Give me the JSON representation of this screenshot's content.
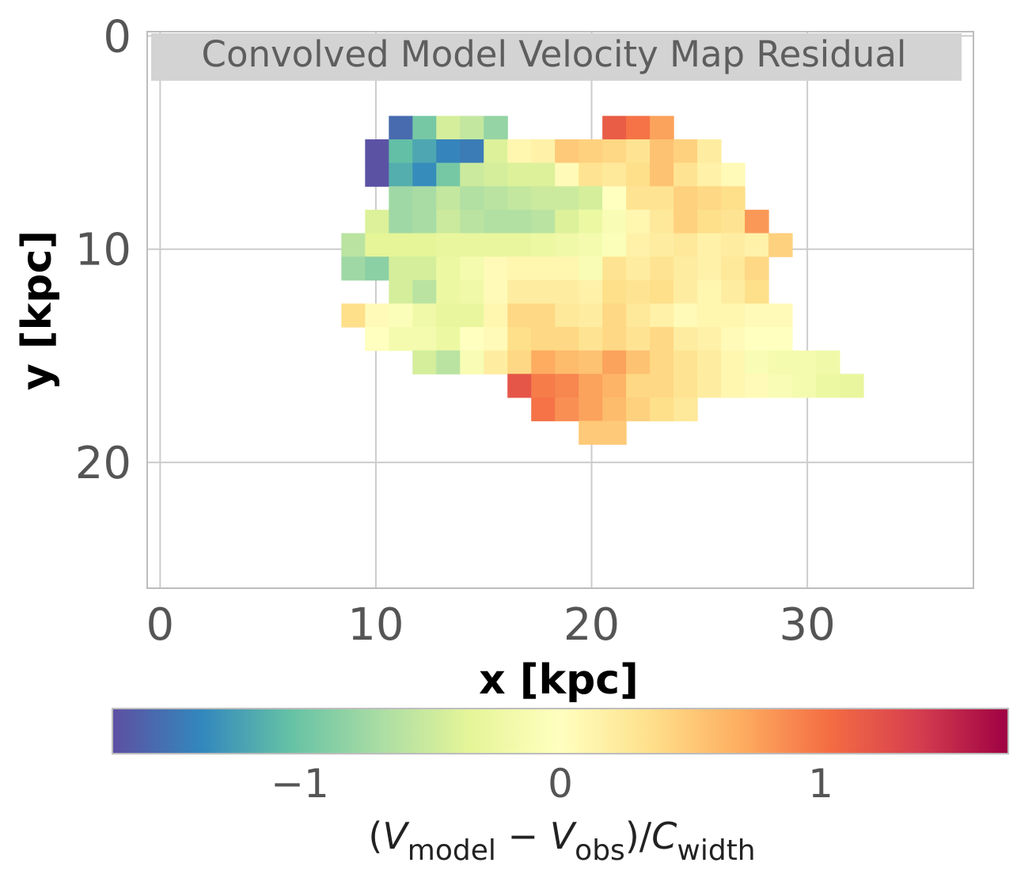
{
  "chart_data": {
    "type": "heatmap",
    "title": "Convolved Model Velocity Map Residual",
    "xlabel": "x [kpc]",
    "ylabel": "y [kpc]",
    "xlim": [
      -0.6,
      37.7
    ],
    "ylim": [
      25.9,
      -0.2
    ],
    "y_inverted": true,
    "grid": true,
    "x_ticks": [
      0,
      10,
      20,
      30
    ],
    "x_tick_labels": [
      "0",
      "10",
      "20",
      "30"
    ],
    "y_ticks": [
      0,
      10,
      20
    ],
    "y_tick_labels": [
      "0",
      "10",
      "20"
    ],
    "pixel_size_kpc": 1.1,
    "pixel_grid_origin": {
      "x0": 8.4,
      "y0": 3.75
    },
    "pixels_note": "each row: [row_index, first_col_index, value, value, ...]; pixel i spans x0+i*size..x0+(i+1)*size",
    "pixels": [
      [
        0,
        2,
        -1.55,
        -0.95,
        -0.45,
        -0.55,
        -0.8,
        null,
        null,
        null,
        null,
        1.15,
        1.0,
        0.75
      ],
      [
        1,
        1,
        -1.7,
        -1.05,
        -1.2,
        -1.4,
        -1.45,
        -0.4,
        0.1,
        0.15,
        0.5,
        0.45,
        0.4,
        0.3,
        0.55,
        0.45,
        0.2
      ],
      [
        2,
        1,
        -1.7,
        -1.15,
        -1.35,
        -0.95,
        -0.5,
        -0.45,
        -0.4,
        -0.4,
        0.05,
        0.3,
        0.25,
        0.35,
        0.55,
        0.3,
        0.15,
        0.05
      ],
      [
        3,
        2,
        -0.75,
        -0.7,
        -0.55,
        -0.65,
        -0.6,
        -0.55,
        -0.5,
        -0.5,
        -0.45,
        0.0,
        0.3,
        0.3,
        0.45,
        0.4,
        0.35
      ],
      [
        4,
        1,
        -0.4,
        -0.75,
        -0.7,
        -0.5,
        -0.6,
        -0.65,
        -0.65,
        -0.6,
        -0.4,
        -0.25,
        -0.1,
        0.1,
        0.25,
        0.45,
        0.35,
        0.3,
        0.8
      ],
      [
        5,
        0,
        -0.6,
        -0.35,
        -0.35,
        -0.35,
        -0.3,
        -0.3,
        -0.3,
        -0.3,
        -0.25,
        -0.2,
        -0.15,
        -0.05,
        0.15,
        0.2,
        0.25,
        0.15,
        0.2,
        0.15,
        0.45
      ],
      [
        6,
        0,
        -0.75,
        -0.85,
        -0.45,
        -0.45,
        -0.25,
        -0.15,
        0.05,
        0.1,
        0.1,
        0.1,
        -0.1,
        0.3,
        0.2,
        0.3,
        0.2,
        0.15,
        0.25,
        0.4
      ],
      [
        7,
        2,
        -0.45,
        -0.6,
        -0.25,
        -0.2,
        0.05,
        0.2,
        0.2,
        0.2,
        0.15,
        0.35,
        0.3,
        0.35,
        0.2,
        0.1,
        0.2,
        0.35
      ],
      [
        8,
        0,
        0.35,
        0.05,
        -0.05,
        -0.2,
        -0.3,
        -0.3,
        0.1,
        0.4,
        0.4,
        0.25,
        0.2,
        0.4,
        0.25,
        0.15,
        0.05,
        0.1,
        0.1,
        0.05,
        0.05
      ],
      [
        9,
        1,
        0.0,
        -0.15,
        -0.15,
        -0.25,
        0.0,
        0.05,
        0.35,
        0.4,
        0.4,
        0.3,
        0.4,
        0.3,
        0.4,
        0.2,
        0.15,
        0.05,
        0.0,
        0.0
      ],
      [
        10,
        3,
        -0.45,
        -0.6,
        -0.1,
        0.2,
        0.4,
        0.7,
        0.6,
        0.55,
        0.75,
        0.55,
        0.4,
        0.3,
        0.2,
        0.1,
        -0.1,
        -0.15,
        -0.15,
        -0.2
      ],
      [
        11,
        7,
        1.2,
        0.95,
        0.9,
        0.75,
        0.65,
        0.4,
        0.4,
        0.3,
        0.2,
        0.1,
        0.05,
        -0.1,
        -0.15,
        -0.25,
        -0.3
      ],
      [
        12,
        8,
        1.0,
        0.85,
        0.75,
        0.6,
        0.45,
        0.35,
        0.25
      ],
      [
        13,
        10,
        0.5,
        0.5
      ]
    ],
    "colorbar": {
      "colormap": "Spectral_r",
      "vmin": -1.72,
      "vmax": 1.72,
      "ticks": [
        -1,
        0,
        1
      ],
      "tick_labels": [
        "−1",
        "0",
        "1"
      ],
      "label_parts": [
        "(",
        "V",
        "model",
        " − ",
        "V",
        "obs",
        ")/",
        "C",
        "width"
      ]
    }
  }
}
